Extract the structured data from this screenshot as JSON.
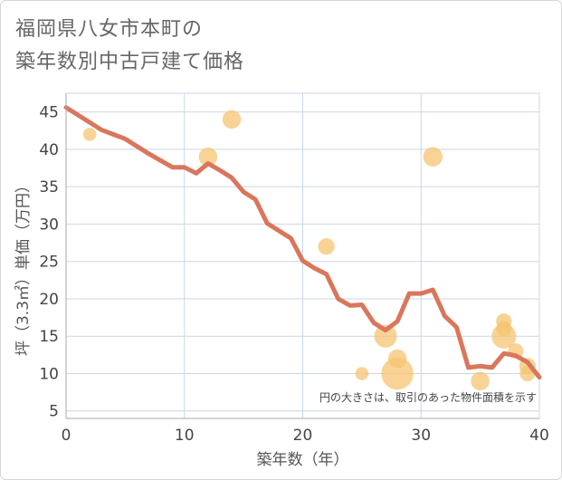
{
  "title_line1": "福岡県八女市本町の",
  "title_line2": "築年数別中古戸建て価格",
  "chart_data": {
    "type": "scatter",
    "title": "福岡県八女市本町の築年数別中古戸建て価格",
    "xlabel": "築年数（年）",
    "ylabel": "坪（3.3㎡）単価（万円）",
    "xlim": [
      0,
      40
    ],
    "ylim": [
      4,
      47.5
    ],
    "xticks": [
      0,
      10,
      20,
      30,
      40
    ],
    "yticks": [
      5,
      10,
      15,
      20,
      25,
      30,
      35,
      40,
      45
    ],
    "grid": true,
    "annotation": "円の大きさは、取引のあった物件面積を示す",
    "colors": {
      "line": "#d9765c",
      "bubble": "#f5c471",
      "grid": "#c9d7e8",
      "axis": "#aaaaaa"
    },
    "series": [
      {
        "name": "transactions",
        "kind": "bubble",
        "points": [
          {
            "x": 2,
            "y": 42,
            "size": 1
          },
          {
            "x": 12,
            "y": 39,
            "size": 2
          },
          {
            "x": 14,
            "y": 44,
            "size": 2
          },
          {
            "x": 22,
            "y": 27,
            "size": 1.6
          },
          {
            "x": 25,
            "y": 10,
            "size": 1
          },
          {
            "x": 27,
            "y": 15,
            "size": 3
          },
          {
            "x": 28,
            "y": 10,
            "size": 6
          },
          {
            "x": 28,
            "y": 12,
            "size": 2
          },
          {
            "x": 31,
            "y": 39,
            "size": 2.2
          },
          {
            "x": 35,
            "y": 9,
            "size": 2
          },
          {
            "x": 37,
            "y": 15,
            "size": 3.5
          },
          {
            "x": 37,
            "y": 17,
            "size": 1.4
          },
          {
            "x": 37,
            "y": 16,
            "size": 1.4
          },
          {
            "x": 38,
            "y": 13,
            "size": 1.4
          },
          {
            "x": 39,
            "y": 11,
            "size": 1.6
          },
          {
            "x": 39,
            "y": 10,
            "size": 1.4
          }
        ]
      },
      {
        "name": "trend",
        "kind": "line",
        "x": [
          0,
          1,
          2,
          3,
          4,
          5,
          6,
          7,
          8,
          9,
          10,
          11,
          12,
          13,
          14,
          15,
          16,
          17,
          18,
          19,
          20,
          21,
          22,
          23,
          24,
          25,
          26,
          27,
          28,
          29,
          30,
          31,
          32,
          33,
          34,
          35,
          36,
          37,
          38,
          39,
          40
        ],
        "y": [
          45.6,
          44.6,
          43.6,
          42.6,
          42,
          41.4,
          40.4,
          39.4,
          38.5,
          37.6,
          37.6,
          36.8,
          38.1,
          37.2,
          36.2,
          34.3,
          33.3,
          30.1,
          29.1,
          28.1,
          25.1,
          24.1,
          23.3,
          20,
          19.1,
          19.2,
          16.8,
          15.8,
          17,
          20.7,
          20.7,
          21.2,
          17.7,
          16.2,
          10.8,
          11,
          10.8,
          12.7,
          12.4,
          11.5,
          9.5
        ]
      }
    ]
  }
}
